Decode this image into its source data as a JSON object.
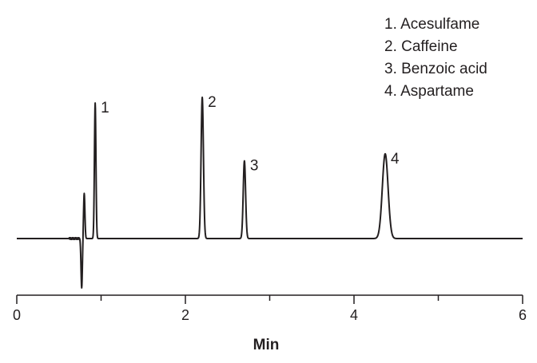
{
  "chart_data": {
    "type": "line",
    "title": "",
    "xlabel": "Min",
    "ylabel": "",
    "xlim": [
      0,
      6
    ],
    "x_ticks": [
      0,
      2,
      4,
      6
    ],
    "x_minor_ticks": [
      1,
      3,
      5
    ],
    "grid": false,
    "legend_position": "top-right",
    "line_color": "#231f20",
    "baseline": 0,
    "peaks": [
      {
        "label": "1",
        "time": 0.93,
        "height": 0.96
      },
      {
        "label": "2",
        "time": 2.2,
        "height": 1.0
      },
      {
        "label": "3",
        "time": 2.7,
        "height": 0.55
      },
      {
        "label": "4",
        "time": 4.37,
        "height": 0.6
      }
    ],
    "disturbances": [
      {
        "time": 0.8,
        "height": 0.32
      },
      {
        "time": 0.77,
        "height": -0.35
      }
    ],
    "legend": [
      "1. Acesulfame",
      "2. Caffeine",
      "3. Benzoic acid",
      "4. Aspartame"
    ]
  }
}
